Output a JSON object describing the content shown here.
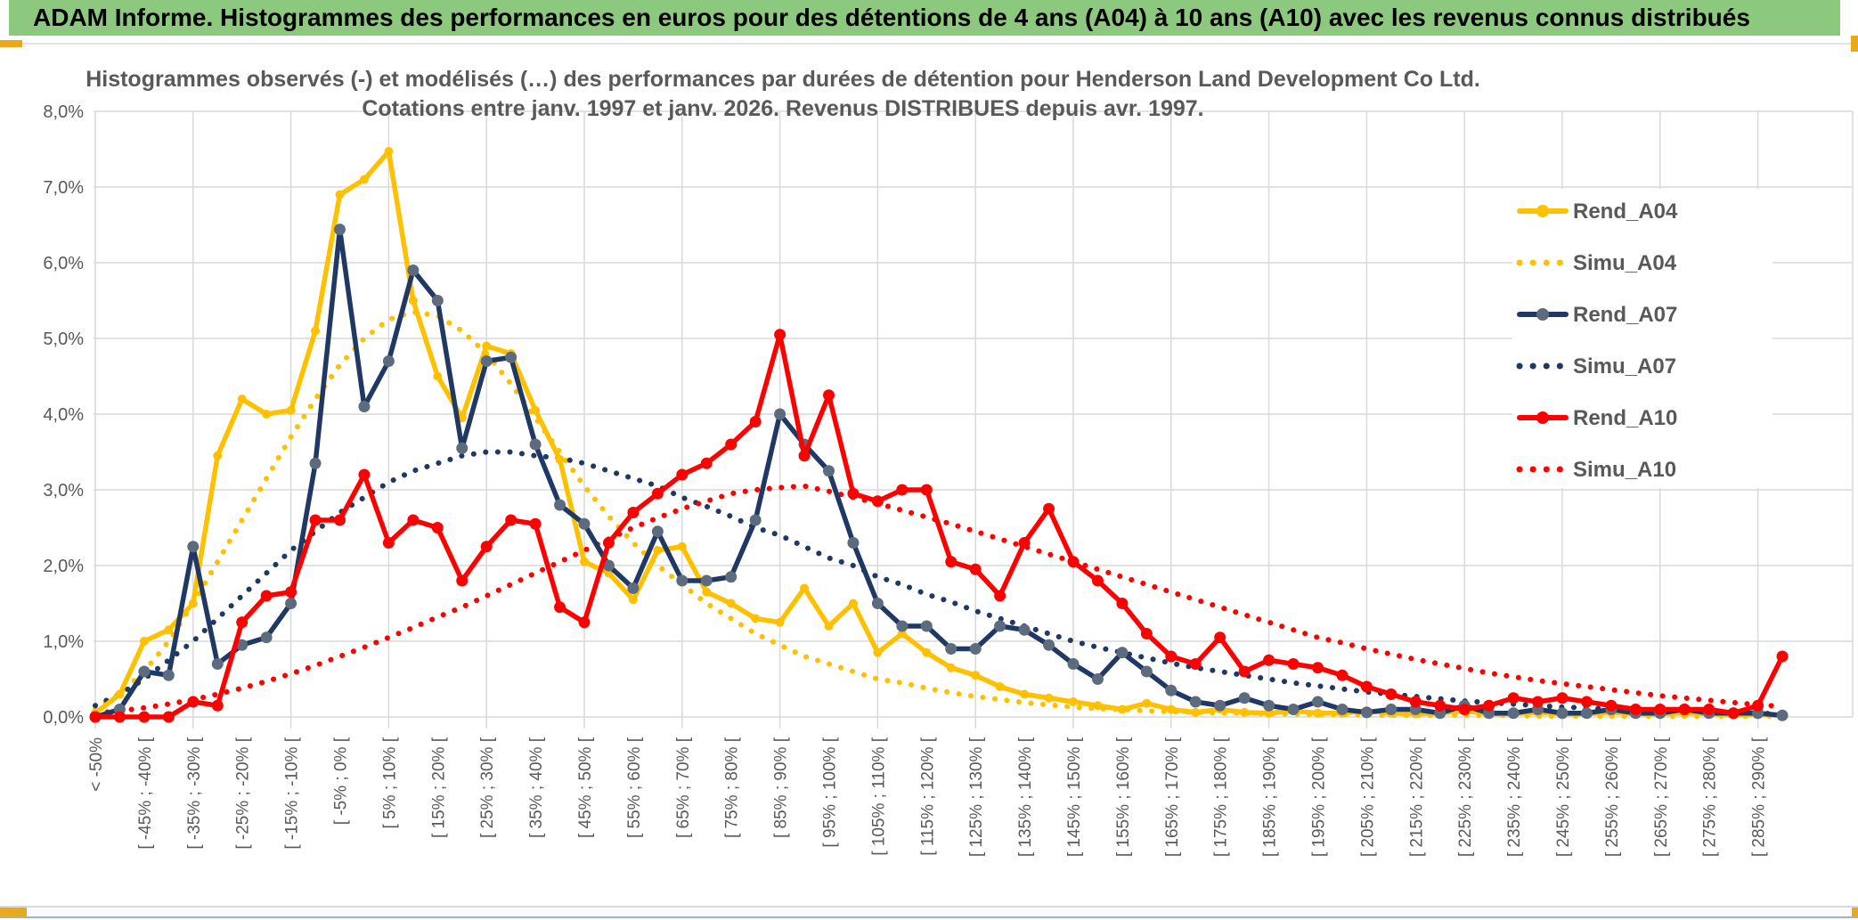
{
  "header": {
    "title": "ADAM Informe. Histogrammes des performances en euros pour des détentions de 4 ans (A04) à 10 ans (A10) avec les revenus connus distribués",
    "bg_color": "#8cc97e",
    "text_color": "#000000"
  },
  "accents": {
    "gold_color": "#e8a91d"
  },
  "chart_data": {
    "type": "line",
    "title_line1": "Histogrammes observés (-) et modélisés (…) des performances par durées de détention pour Henderson Land Development Co Ltd.",
    "title_line2": "Cotations entre janv. 1997 et janv. 2026. Revenus DISTRIBUES depuis avr. 1997.",
    "title_color": "#595959",
    "ylabel": "",
    "xlabel": "",
    "ylim": [
      0,
      8
    ],
    "y_tick_labels": [
      "0,0%",
      "1,0%",
      "2,0%",
      "3,0%",
      "4,0%",
      "5,0%",
      "6,0%",
      "7,0%",
      "8,0%"
    ],
    "n_points": 70,
    "x_tick_label_every": 2,
    "x_tick_labels": [
      "< -50%",
      "[ -45% ; -40% [",
      "[ -35% ; -30% [",
      "[ -25% ; -20% [",
      "[ -15% ; -10% [",
      "[ -5% ; 0% [",
      "[ 5% ; 10% [",
      "[ 15% ; 20% [",
      "[ 25% ; 30% [",
      "[ 35% ; 40% [",
      "[ 45% ; 50% [",
      "[ 55% ; 60% [",
      "[ 65% ; 70% [",
      "[ 75% ; 80% [",
      "[ 85% ; 90% [",
      "[ 95% ; 100% [",
      "[ 105% ; 110% [",
      "[ 115% ; 120% [",
      "[ 125% ; 130% [",
      "[ 135% ; 140% [",
      "[ 145% ; 150% [",
      "[ 155% ; 160% [",
      "[ 165% ; 170% [",
      "[ 175% ; 180% [",
      "[ 185% ; 190% [",
      "[ 195% ; 200% [",
      "[ 205% ; 210% [",
      "[ 215% ; 220% [",
      "[ 225% ; 230% [",
      "[ 235% ; 240% [",
      "[ 245% ; 250% [",
      "[ 255% ; 260% [",
      "[ 265% ; 270% [",
      "[ 275% ; 280% [",
      "[ 285% ; 290% ["
    ],
    "grid": true,
    "grid_color": "#d9d9d9",
    "axis_text_color": "#595959",
    "legend_position": "right-top-inside",
    "series": [
      {
        "name": "Rend_A04",
        "style": "solid",
        "color": "#FFC000",
        "marker_color": "#FFC000",
        "values": [
          0.05,
          0.3,
          1.0,
          1.15,
          1.5,
          3.45,
          4.2,
          4.0,
          4.05,
          5.1,
          6.9,
          7.1,
          7.47,
          5.5,
          4.5,
          3.95,
          4.9,
          4.8,
          4.05,
          3.4,
          2.05,
          1.9,
          1.55,
          2.2,
          2.25,
          1.65,
          1.5,
          1.3,
          1.25,
          1.7,
          1.2,
          1.5,
          0.85,
          1.1,
          0.85,
          0.65,
          0.55,
          0.4,
          0.3,
          0.25,
          0.2,
          0.15,
          0.1,
          0.18,
          0.1,
          0.06,
          0.1,
          0.06,
          0.05,
          0.08,
          0.05,
          0.05,
          0.08,
          0.05,
          0.04,
          0.05,
          0.08,
          0.04,
          0.04,
          0.06,
          0.04,
          0.04,
          0.06,
          0.04,
          0.04,
          0.05,
          0.04,
          0.03,
          0.03,
          0.02
        ]
      },
      {
        "name": "Simu_A04",
        "style": "dotted",
        "color": "#FFC000",
        "values": [
          0.1,
          0.3,
          0.6,
          1.0,
          1.5,
          2.05,
          2.6,
          3.15,
          3.7,
          4.2,
          4.65,
          5.0,
          5.25,
          5.35,
          5.3,
          5.1,
          4.8,
          4.4,
          3.95,
          3.5,
          3.05,
          2.65,
          2.3,
          2.0,
          1.75,
          1.5,
          1.3,
          1.1,
          0.95,
          0.8,
          0.7,
          0.6,
          0.5,
          0.45,
          0.38,
          0.32,
          0.27,
          0.23,
          0.19,
          0.16,
          0.13,
          0.11,
          0.1,
          0.08,
          0.07,
          0.06,
          0.05,
          0.05,
          0.04,
          0.04,
          0.03,
          0.03,
          0.03,
          0.02,
          0.02,
          0.02,
          0.02,
          0.02,
          0.02,
          0.01,
          0.01,
          0.01,
          0.01,
          0.01,
          0.01,
          0.01,
          0.01,
          0.01,
          0.01,
          0.01
        ]
      },
      {
        "name": "Rend_A07",
        "style": "solid",
        "color": "#1F3864",
        "marker_color": "#5d6b7e",
        "values": [
          0.0,
          0.1,
          0.6,
          0.55,
          2.25,
          0.7,
          0.95,
          1.05,
          1.5,
          3.35,
          6.44,
          4.1,
          4.7,
          5.9,
          5.5,
          3.55,
          4.7,
          4.75,
          3.6,
          2.8,
          2.55,
          2.0,
          1.7,
          2.45,
          1.8,
          1.8,
          1.85,
          2.6,
          4.0,
          3.6,
          3.25,
          2.3,
          1.5,
          1.2,
          1.2,
          0.9,
          0.9,
          1.2,
          1.15,
          0.95,
          0.7,
          0.5,
          0.85,
          0.6,
          0.35,
          0.2,
          0.15,
          0.25,
          0.15,
          0.1,
          0.2,
          0.1,
          0.06,
          0.1,
          0.1,
          0.05,
          0.15,
          0.05,
          0.05,
          0.1,
          0.05,
          0.05,
          0.1,
          0.05,
          0.05,
          0.1,
          0.05,
          0.05,
          0.05,
          0.02
        ]
      },
      {
        "name": "Simu_A07",
        "style": "dotted",
        "color": "#1F3864",
        "values": [
          0.15,
          0.3,
          0.5,
          0.75,
          1.0,
          1.3,
          1.6,
          1.9,
          2.2,
          2.45,
          2.7,
          2.9,
          3.1,
          3.25,
          3.35,
          3.45,
          3.5,
          3.5,
          3.45,
          3.42,
          3.35,
          3.25,
          3.15,
          3.05,
          2.9,
          2.78,
          2.65,
          2.5,
          2.4,
          2.25,
          2.1,
          2.0,
          1.85,
          1.75,
          1.62,
          1.52,
          1.4,
          1.3,
          1.2,
          1.1,
          1.0,
          0.92,
          0.85,
          0.78,
          0.71,
          0.65,
          0.6,
          0.55,
          0.5,
          0.45,
          0.41,
          0.37,
          0.33,
          0.3,
          0.27,
          0.24,
          0.21,
          0.19,
          0.17,
          0.15,
          0.13,
          0.12,
          0.1,
          0.09,
          0.08,
          0.07,
          0.06,
          0.05,
          0.05,
          0.04
        ]
      },
      {
        "name": "Rend_A10",
        "style": "solid",
        "color": "#FF0000",
        "marker_color": "#FF0000",
        "values": [
          0.0,
          0.0,
          0.0,
          0.0,
          0.2,
          0.15,
          1.25,
          1.6,
          1.65,
          2.6,
          2.6,
          3.2,
          2.3,
          2.6,
          2.5,
          1.8,
          2.25,
          2.6,
          2.55,
          1.45,
          1.25,
          2.3,
          2.7,
          2.95,
          3.2,
          3.35,
          3.6,
          3.9,
          5.05,
          3.45,
          4.25,
          2.95,
          2.85,
          3.0,
          3.0,
          2.05,
          1.95,
          1.6,
          2.3,
          2.75,
          2.05,
          1.8,
          1.5,
          1.1,
          0.8,
          0.7,
          1.05,
          0.6,
          0.75,
          0.7,
          0.65,
          0.55,
          0.4,
          0.3,
          0.2,
          0.15,
          0.1,
          0.15,
          0.25,
          0.2,
          0.25,
          0.2,
          0.15,
          0.1,
          0.1,
          0.1,
          0.1,
          0.05,
          0.15,
          0.8
        ]
      },
      {
        "name": "Simu_A10",
        "style": "dotted",
        "color": "#FF0000",
        "values": [
          0.05,
          0.08,
          0.12,
          0.17,
          0.23,
          0.3,
          0.38,
          0.47,
          0.57,
          0.68,
          0.8,
          0.92,
          1.05,
          1.18,
          1.32,
          1.45,
          1.6,
          1.75,
          1.9,
          2.05,
          2.2,
          2.35,
          2.5,
          2.63,
          2.75,
          2.85,
          2.95,
          3.0,
          3.03,
          3.05,
          2.98,
          2.9,
          2.82,
          2.73,
          2.64,
          2.55,
          2.45,
          2.35,
          2.25,
          2.15,
          2.05,
          1.95,
          1.85,
          1.75,
          1.65,
          1.55,
          1.45,
          1.35,
          1.25,
          1.15,
          1.05,
          0.98,
          0.9,
          0.83,
          0.76,
          0.7,
          0.64,
          0.58,
          0.53,
          0.48,
          0.44,
          0.4,
          0.36,
          0.32,
          0.28,
          0.25,
          0.22,
          0.19,
          0.16,
          0.14
        ]
      }
    ],
    "legend_entries": [
      "Rend_A04",
      "Simu_A04",
      "Rend_A07",
      "Simu_A07",
      "Rend_A10",
      "Simu_A10"
    ]
  }
}
